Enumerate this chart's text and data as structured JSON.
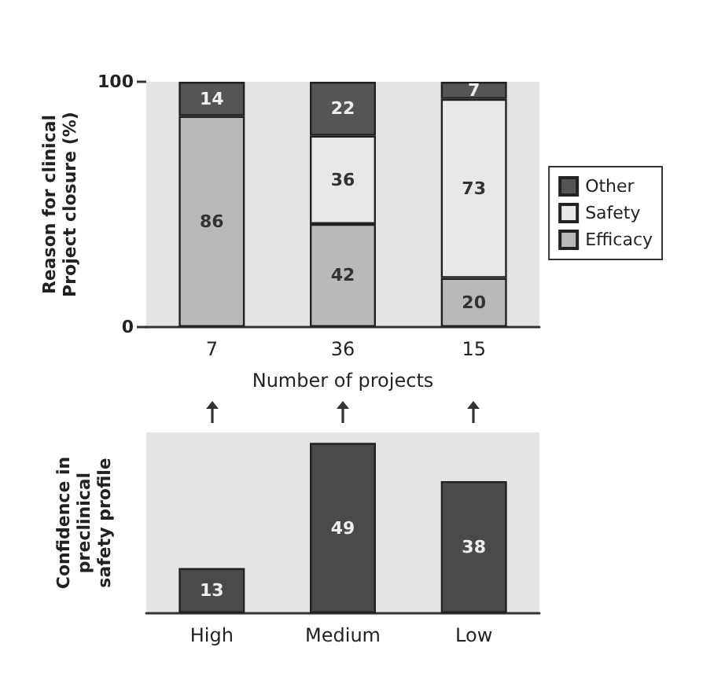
{
  "chart_data": [
    {
      "type": "bar",
      "stacked": true,
      "categories": [
        "7",
        "36",
        "15"
      ],
      "xlabel": "Number of projects",
      "ylabel": "Reason for clinical\nProject closure (%)",
      "ylim": [
        0,
        100
      ],
      "yticks": [
        0,
        100
      ],
      "grid": false,
      "legend": "right",
      "data_labels": true,
      "series": [
        {
          "name": "Efficacy",
          "color": "#b9b9b9",
          "values": [
            86,
            42,
            20
          ]
        },
        {
          "name": "Safety",
          "color": "#e8e8e8",
          "values": [
            null,
            36,
            73
          ]
        },
        {
          "name": "Other",
          "color": "#555555",
          "values": [
            14,
            22,
            7
          ]
        }
      ]
    },
    {
      "type": "bar",
      "categories": [
        "High",
        "Medium",
        "Low"
      ],
      "ylabel": "Confidence in\npreclinical\nsafety profile",
      "ylim": [
        0,
        52
      ],
      "tick_labels": "x",
      "grid": false,
      "legend": false,
      "data_labels": true,
      "series": [
        {
          "color": "#4a4a4a",
          "values": [
            13,
            49,
            38
          ]
        }
      ]
    }
  ]
}
